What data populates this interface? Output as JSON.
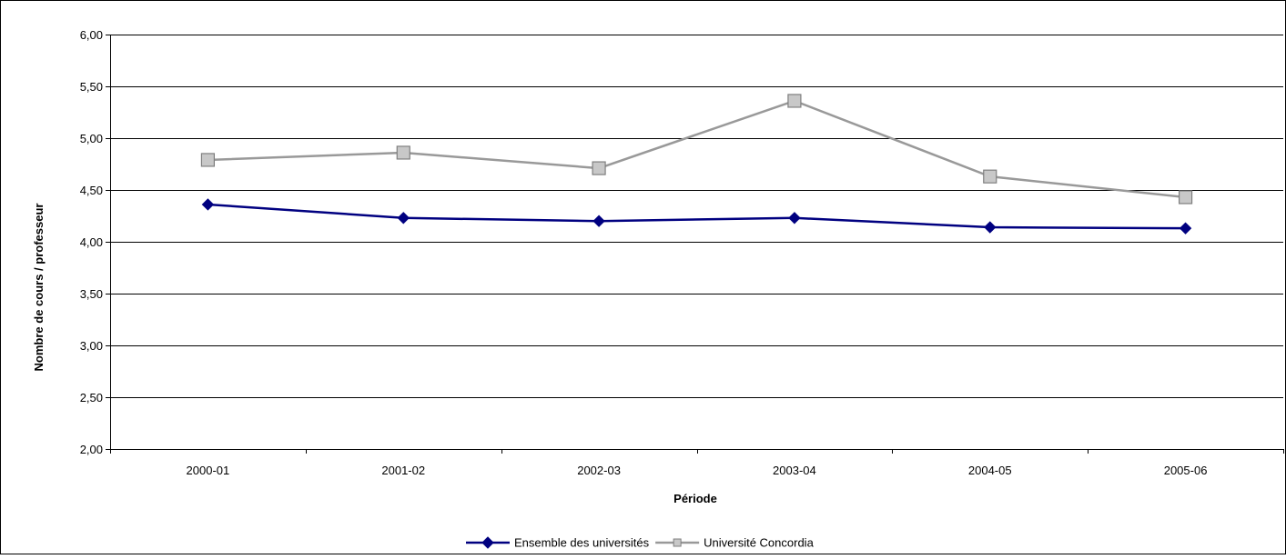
{
  "chart_data": {
    "type": "line",
    "categories": [
      "2000-01",
      "2001-02",
      "2002-03",
      "2003-04",
      "2004-05",
      "2005-06"
    ],
    "series": [
      {
        "name": "Ensemble des universités",
        "values": [
          4.36,
          4.23,
          4.2,
          4.23,
          4.14,
          4.13
        ],
        "color": "#000080",
        "marker": "diamond"
      },
      {
        "name": "Université Concordia",
        "values": [
          4.79,
          4.86,
          4.71,
          5.36,
          4.63,
          4.43
        ],
        "color": "#999999",
        "marker": "square"
      }
    ],
    "title": "",
    "xlabel": "Période",
    "ylabel": "Nombre de cours / professeur",
    "ylim": [
      2.0,
      6.0
    ],
    "y_ticks": [
      "2,00",
      "2,50",
      "3,00",
      "3,50",
      "4,00",
      "4,50",
      "5,00",
      "5,50",
      "6,00"
    ],
    "grid": true,
    "legend_position": "bottom"
  }
}
